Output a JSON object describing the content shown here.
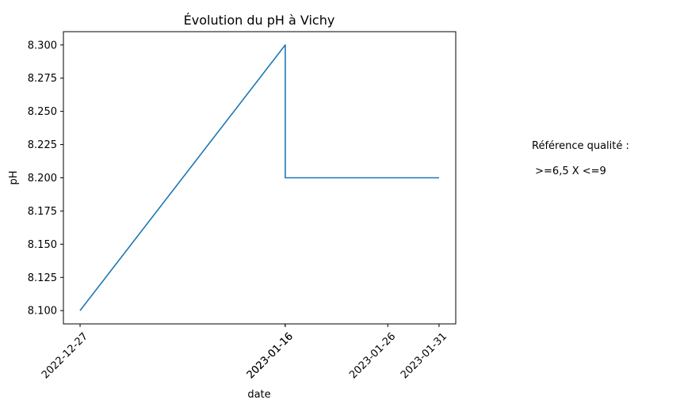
{
  "chart_data": {
    "type": "line",
    "title": "Évolution du pH à Vichy",
    "xlabel": "date",
    "ylabel": "pH",
    "x": [
      "2022-12-27",
      "2023-01-16",
      "2023-01-16",
      "2023-01-31"
    ],
    "series": [
      {
        "values": [
          8.1,
          8.3,
          8.2,
          8.2
        ],
        "color": "#1f77b4"
      }
    ],
    "xticks": [
      "2022-12-27",
      "2023-01-16",
      "2023-01-16",
      "2023-01-26",
      "2023-01-31"
    ],
    "yticks": [
      "8.100",
      "8.125",
      "8.150",
      "8.175",
      "8.200",
      "8.225",
      "8.250",
      "8.275",
      "8.300"
    ],
    "ylim": [
      8.09,
      8.31
    ],
    "xlim": [
      "2022-12-25T09:00",
      "2023-02-01T15:00"
    ],
    "grid": false
  },
  "annotation": {
    "line1": "Référence qualité :",
    "line2": " >=6,5 X <=9"
  }
}
